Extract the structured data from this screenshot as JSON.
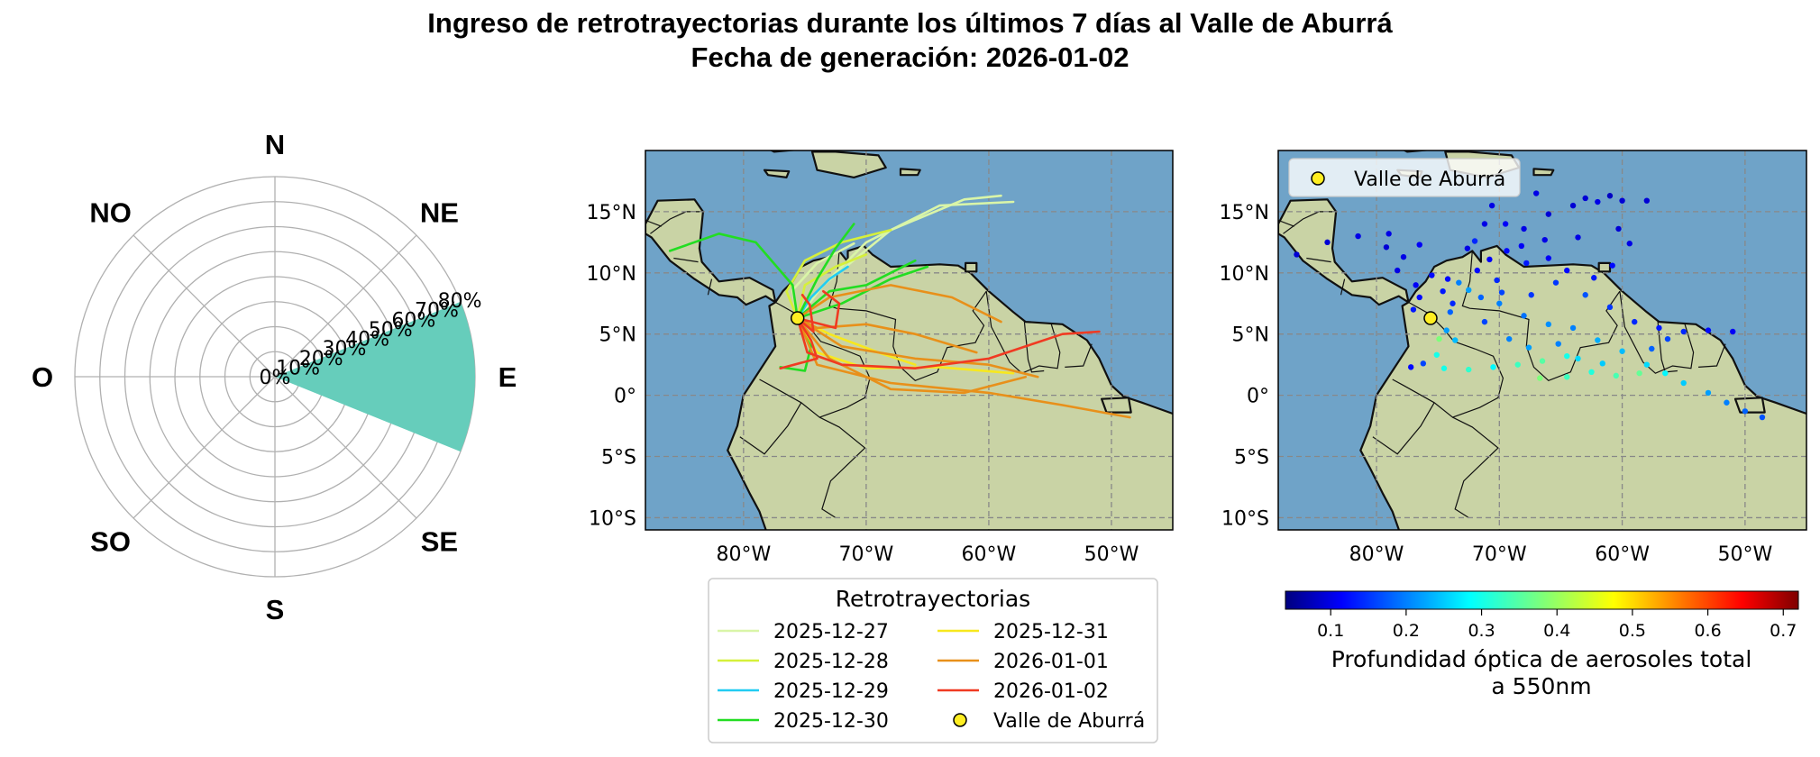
{
  "title": {
    "line1": "Ingreso de retrotrayectorias durante los últimos 7 días al Valle de Aburrá",
    "line2": "Fecha de generación: 2026-01-02"
  },
  "colors": {
    "wind_sector": "#66cdbb",
    "ocean": "#6fa3c8",
    "land": "#c9d3a5",
    "grid": "#888888",
    "site_marker": "#ffee22"
  },
  "chart_data": [
    {
      "type": "polar-bar",
      "directions": [
        "N",
        "NE",
        "E",
        "SE",
        "S",
        "SO",
        "O",
        "NO"
      ],
      "radial_ticks": [
        "0%",
        "10%",
        "20%",
        "30%",
        "40%",
        "50%",
        "60%",
        "70%",
        "80%"
      ],
      "radial_max": 80,
      "sector": {
        "from_deg": 68,
        "to_deg": 112,
        "value": 80
      }
    },
    {
      "type": "map-trajectories",
      "xlim": [
        -88,
        -45
      ],
      "ylim": [
        -11,
        20
      ],
      "x_ticks": [
        {
          "v": -80,
          "label": "80°W"
        },
        {
          "v": -70,
          "label": "70°W"
        },
        {
          "v": -60,
          "label": "60°W"
        },
        {
          "v": -50,
          "label": "50°W"
        }
      ],
      "y_ticks": [
        {
          "v": 15,
          "label": "15°N"
        },
        {
          "v": 10,
          "label": "10°N"
        },
        {
          "v": 5,
          "label": "5°N"
        },
        {
          "v": 0,
          "label": "0°"
        },
        {
          "v": -5,
          "label": "5°S"
        },
        {
          "v": -10,
          "label": "10°S"
        }
      ],
      "site": {
        "name": "Valle de Aburrá",
        "lon": -75.6,
        "lat": 6.3
      },
      "legend": {
        "title": "Retrotrayectorias",
        "entries": [
          {
            "label": "2025-12-27",
            "color": "#d9f5a8"
          },
          {
            "label": "2025-12-28",
            "color": "#d6f03a"
          },
          {
            "label": "2025-12-29",
            "color": "#22ccf2"
          },
          {
            "label": "2025-12-30",
            "color": "#22dd22"
          },
          {
            "label": "2025-12-31",
            "color": "#f7e81e"
          },
          {
            "label": "2026-01-01",
            "color": "#e8901a"
          },
          {
            "label": "2026-01-02",
            "color": "#f03a22"
          },
          {
            "label": "Valle de Aburrá",
            "color": "#ffee22",
            "marker": true
          }
        ]
      },
      "series": [
        {
          "name": "2025-12-27",
          "color": "#d9f5a8",
          "tracks": [
            [
              [
                -75.6,
                6.3
              ],
              [
                -74,
                8.5
              ],
              [
                -70,
                12.5
              ],
              [
                -64,
                15.5
              ],
              [
                -58,
                15.8
              ]
            ],
            [
              [
                -75.6,
                6.3
              ],
              [
                -73.5,
                9
              ],
              [
                -68,
                13.5
              ],
              [
                -62,
                16
              ],
              [
                -59,
                16.3
              ]
            ],
            [
              [
                -75.6,
                6.3
              ],
              [
                -76,
                8.6
              ],
              [
                -74,
                10.8
              ],
              [
                -71,
                12.4
              ]
            ]
          ]
        },
        {
          "name": "2025-12-28",
          "color": "#d6f03a",
          "tracks": [
            [
              [
                -75.6,
                6.3
              ],
              [
                -76.5,
                8.5
              ],
              [
                -75,
                11
              ],
              [
                -72,
                12.5
              ],
              [
                -68,
                13.5
              ]
            ],
            [
              [
                -75.6,
                6.3
              ],
              [
                -75,
                9
              ],
              [
                -72.5,
                10.5
              ],
              [
                -70,
                11.5
              ]
            ]
          ]
        },
        {
          "name": "2025-12-29",
          "color": "#22ccf2",
          "tracks": [
            [
              [
                -75.6,
                6.3
              ],
              [
                -74.5,
                8
              ],
              [
                -73,
                9.5
              ],
              [
                -71.5,
                10.5
              ]
            ]
          ]
        },
        {
          "name": "2025-12-30",
          "color": "#22dd22",
          "tracks": [
            [
              [
                -75.6,
                6.3
              ],
              [
                -76,
                9
              ],
              [
                -79,
                12.5
              ],
              [
                -82,
                13.2
              ],
              [
                -86,
                11.8
              ]
            ],
            [
              [
                -75.6,
                6.3
              ],
              [
                -74,
                9.5
              ],
              [
                -72.5,
                12
              ],
              [
                -71,
                14
              ]
            ],
            [
              [
                -75.6,
                6.3
              ],
              [
                -73,
                8.5
              ],
              [
                -70,
                9
              ],
              [
                -66,
                11
              ]
            ],
            [
              [
                -75.6,
                6.3
              ],
              [
                -72,
                7.5
              ],
              [
                -68,
                9.5
              ],
              [
                -65,
                10.5
              ]
            ],
            [
              [
                -75.6,
                6.3
              ],
              [
                -74.5,
                4
              ],
              [
                -75,
                2
              ],
              [
                -77,
                2.3
              ]
            ]
          ]
        },
        {
          "name": "2025-12-31",
          "color": "#f7e81e",
          "tracks": [
            [
              [
                -75.6,
                6.3
              ],
              [
                -74,
                3.5
              ],
              [
                -70,
                2.2
              ],
              [
                -64,
                2.3
              ],
              [
                -58,
                1.8
              ]
            ],
            [
              [
                -75.6,
                6.3
              ],
              [
                -73,
                5
              ],
              [
                -69,
                3.5
              ],
              [
                -66,
                2.5
              ]
            ]
          ]
        },
        {
          "name": "2026-01-01",
          "color": "#e8901a",
          "tracks": [
            [
              [
                -75.6,
                6.3
              ],
              [
                -73,
                8
              ],
              [
                -68,
                9
              ],
              [
                -63,
                8
              ],
              [
                -59,
                6
              ]
            ],
            [
              [
                -75.6,
                6.3
              ],
              [
                -74,
                2.5
              ],
              [
                -68,
                1
              ],
              [
                -60,
                0.2
              ],
              [
                -54,
                -0.8
              ],
              [
                -48.5,
                -1.8
              ]
            ],
            [
              [
                -75.6,
                6.3
              ],
              [
                -72,
                4
              ],
              [
                -66,
                3
              ],
              [
                -60,
                2.5
              ],
              [
                -56,
                1.5
              ]
            ],
            [
              [
                -75.6,
                6.3
              ],
              [
                -74,
                5.5
              ],
              [
                -70,
                5.8
              ],
              [
                -66,
                5
              ],
              [
                -61,
                3.5
              ]
            ],
            [
              [
                -75.6,
                6.3
              ],
              [
                -73,
                3
              ],
              [
                -68,
                0.5
              ],
              [
                -62,
                0.2
              ],
              [
                -57,
                1.5
              ]
            ]
          ]
        },
        {
          "name": "2026-01-02",
          "color": "#f03a22",
          "tracks": [
            [
              [
                -75.6,
                6.3
              ],
              [
                -74.8,
                3.5
              ],
              [
                -72,
                2.5
              ],
              [
                -66,
                2.2
              ],
              [
                -60,
                3
              ],
              [
                -54,
                5
              ],
              [
                -51,
                5.2
              ]
            ],
            [
              [
                -75.6,
                6.3
              ],
              [
                -74.5,
                4.5
              ],
              [
                -74,
                3
              ],
              [
                -77,
                2.2
              ]
            ],
            [
              [
                -75.6,
                6.3
              ],
              [
                -72.5,
                5.5
              ],
              [
                -72.2,
                7.5
              ],
              [
                -73.5,
                8.5
              ]
            ],
            [
              [
                -75.6,
                6.3
              ],
              [
                -74.3,
                5.2
              ],
              [
                -74.6,
                7.4
              ],
              [
                -75.2,
                8.2
              ]
            ]
          ]
        }
      ]
    },
    {
      "type": "map-scatter",
      "xlim": [
        -88,
        -45
      ],
      "ylim": [
        -11,
        20
      ],
      "x_ticks": [
        {
          "v": -80,
          "label": "80°W"
        },
        {
          "v": -70,
          "label": "70°W"
        },
        {
          "v": -60,
          "label": "60°W"
        },
        {
          "v": -50,
          "label": "50°W"
        }
      ],
      "y_ticks": [
        {
          "v": 15,
          "label": "15°N"
        },
        {
          "v": 10,
          "label": "10°N"
        },
        {
          "v": 5,
          "label": "5°N"
        },
        {
          "v": 0,
          "label": "0°"
        },
        {
          "v": -5,
          "label": "5°S"
        },
        {
          "v": -10,
          "label": "10°S"
        }
      ],
      "site": {
        "name": "Valle de Aburrá",
        "lon": -75.6,
        "lat": 6.3
      },
      "legend": {
        "label": "Valle de Aburrá"
      },
      "colorbar": {
        "label_line1": "Profundidad óptica de aerosoles total",
        "label_line2": "a 550nm",
        "vmin": 0.04,
        "vmax": 0.72,
        "ticks": [
          {
            "v": 0.1,
            "label": "0.1"
          },
          {
            "v": 0.2,
            "label": "0.2"
          },
          {
            "v": 0.3,
            "label": "0.3"
          },
          {
            "v": 0.4,
            "label": "0.4"
          },
          {
            "v": 0.5,
            "label": "0.5"
          },
          {
            "v": 0.6,
            "label": "0.6"
          },
          {
            "v": 0.7,
            "label": "0.7"
          }
        ]
      },
      "points": [
        [
          -86.5,
          11.5,
          0.09
        ],
        [
          -84,
          12.5,
          0.09
        ],
        [
          -81.5,
          13,
          0.1
        ],
        [
          -79,
          13.2,
          0.1
        ],
        [
          -76.5,
          12.3,
          0.11
        ],
        [
          -74.2,
          9.5,
          0.12
        ],
        [
          -72.6,
          12,
          0.1
        ],
        [
          -71.2,
          14,
          0.1
        ],
        [
          -70.6,
          15.5,
          0.1
        ],
        [
          -69.5,
          14,
          0.11
        ],
        [
          -68,
          13.6,
          0.1
        ],
        [
          -66,
          14.8,
          0.09
        ],
        [
          -64,
          15.5,
          0.09
        ],
        [
          -62,
          15.8,
          0.1
        ],
        [
          -60,
          15.9,
          0.09
        ],
        [
          -58,
          15.9,
          0.09
        ],
        [
          -61,
          16.3,
          0.08
        ],
        [
          -63,
          16.1,
          0.09
        ],
        [
          -67,
          16.5,
          0.1
        ],
        [
          -72,
          12.6,
          0.14
        ],
        [
          -69.4,
          11.8,
          0.12
        ],
        [
          -67.8,
          10.8,
          0.13
        ],
        [
          -66,
          11.2,
          0.11
        ],
        [
          -64.5,
          10.2,
          0.12
        ],
        [
          -63,
          8.2,
          0.17
        ],
        [
          -61,
          7.2,
          0.15
        ],
        [
          -59,
          6,
          0.14
        ],
        [
          -57,
          5.5,
          0.13
        ],
        [
          -55,
          5.2,
          0.14
        ],
        [
          -53,
          5.3,
          0.12
        ],
        [
          -51,
          5.2,
          0.11
        ],
        [
          -73.3,
          9.2,
          0.2
        ],
        [
          -72.5,
          8.6,
          0.22
        ],
        [
          -71.5,
          8,
          0.18
        ],
        [
          -70,
          7.5,
          0.2
        ],
        [
          -68,
          6.5,
          0.19
        ],
        [
          -66,
          5.8,
          0.21
        ],
        [
          -64,
          5.5,
          0.2
        ],
        [
          -62,
          4.5,
          0.23
        ],
        [
          -60,
          3.6,
          0.24
        ],
        [
          -58,
          2.5,
          0.26
        ],
        [
          -56.5,
          1.8,
          0.28
        ],
        [
          -55,
          1,
          0.25
        ],
        [
          -53,
          0.2,
          0.22
        ],
        [
          -51.5,
          -0.6,
          0.2
        ],
        [
          -50,
          -1.3,
          0.18
        ],
        [
          -48.6,
          -1.8,
          0.17
        ],
        [
          -74.5,
          2.2,
          0.3
        ],
        [
          -72.5,
          2.1,
          0.32
        ],
        [
          -70.5,
          2.3,
          0.28
        ],
        [
          -68.5,
          2.5,
          0.33
        ],
        [
          -66.5,
          2.8,
          0.35
        ],
        [
          -64.5,
          3.2,
          0.3
        ],
        [
          -66.7,
          1.4,
          0.38
        ],
        [
          -64.5,
          1.5,
          0.33
        ],
        [
          -62.5,
          1.9,
          0.31
        ],
        [
          -60.5,
          1.6,
          0.34
        ],
        [
          -58.6,
          1.8,
          0.36
        ],
        [
          -76.5,
          8,
          0.12
        ],
        [
          -77,
          7,
          0.13
        ],
        [
          -76.8,
          9,
          0.11
        ],
        [
          -75.5,
          9.8,
          0.12
        ],
        [
          -74.6,
          8.5,
          0.13
        ],
        [
          -73.8,
          7.5,
          0.14
        ],
        [
          -74.3,
          5.3,
          0.22
        ],
        [
          -73.6,
          4.5,
          0.24
        ],
        [
          -74.9,
          4.6,
          0.38
        ],
        [
          -75.1,
          3.3,
          0.3
        ],
        [
          -76.2,
          2.6,
          0.16
        ],
        [
          -77.2,
          2.3,
          0.12
        ],
        [
          -74,
          6.8,
          0.18
        ],
        [
          -71.2,
          6,
          0.16
        ],
        [
          -69.2,
          4.6,
          0.2
        ],
        [
          -67.6,
          3.9,
          0.22
        ],
        [
          -65.2,
          4.2,
          0.2
        ],
        [
          -63.6,
          3,
          0.26
        ],
        [
          -61.6,
          2.6,
          0.25
        ],
        [
          -57.6,
          3.8,
          0.18
        ],
        [
          -56.3,
          4.6,
          0.16
        ],
        [
          -77.8,
          11.3,
          0.1
        ],
        [
          -79.2,
          12.1,
          0.09
        ],
        [
          -78.3,
          10.2,
          0.1
        ],
        [
          -71.8,
          10.2,
          0.12
        ],
        [
          -70.8,
          11.1,
          0.11
        ],
        [
          -65.4,
          9.2,
          0.15
        ],
        [
          -62.3,
          9.6,
          0.13
        ],
        [
          -60.8,
          10.6,
          0.12
        ],
        [
          -59.4,
          12.4,
          0.1
        ],
        [
          -60.3,
          13.6,
          0.09
        ],
        [
          -63.6,
          12.9,
          0.1
        ],
        [
          -66.3,
          12.7,
          0.1
        ],
        [
          -68.2,
          12.2,
          0.11
        ],
        [
          -70.2,
          9.4,
          0.14
        ],
        [
          -69.8,
          8.4,
          0.16
        ],
        [
          -67.4,
          8.2,
          0.15
        ]
      ]
    }
  ]
}
